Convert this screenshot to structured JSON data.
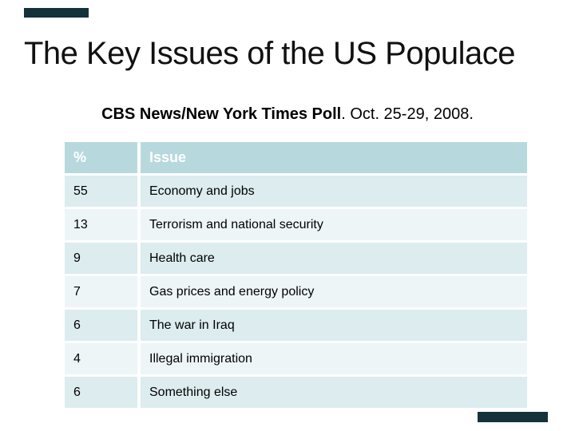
{
  "slide": {
    "title": "The Key Issues of the US Populace",
    "subtitle": {
      "source": "CBS News/New York Times Poll",
      "date": ". Oct. 25-29, 2008."
    }
  },
  "table": {
    "headers": [
      "%",
      "Issue"
    ],
    "rows": [
      {
        "percent": "55",
        "issue": "Economy and jobs"
      },
      {
        "percent": "13",
        "issue": "Terrorism and national security"
      },
      {
        "percent": "9",
        "issue": "Health care"
      },
      {
        "percent": "7",
        "issue": "Gas prices and energy policy"
      },
      {
        "percent": "6",
        "issue": "The war in Iraq"
      },
      {
        "percent": "4",
        "issue": "Illegal immigration"
      },
      {
        "percent": "6",
        "issue": "Something else"
      }
    ]
  },
  "chart_data": {
    "type": "table",
    "title": "CBS News/New York Times Poll. Oct. 25-29, 2008.",
    "columns": [
      "%",
      "Issue"
    ],
    "rows": [
      [
        55,
        "Economy and jobs"
      ],
      [
        13,
        "Terrorism and national security"
      ],
      [
        9,
        "Health care"
      ],
      [
        7,
        "Gas prices and energy policy"
      ],
      [
        6,
        "The war in Iraq"
      ],
      [
        4,
        "Illegal immigration"
      ],
      [
        6,
        "Something else"
      ]
    ]
  },
  "colors": {
    "accent_bar": "#14323a",
    "header_bg": "#b7d9dd",
    "header_text": "#ffffff",
    "row_odd": "#dcecef",
    "row_even": "#eef5f7",
    "title_text": "#111111",
    "body_text": "#000000"
  }
}
